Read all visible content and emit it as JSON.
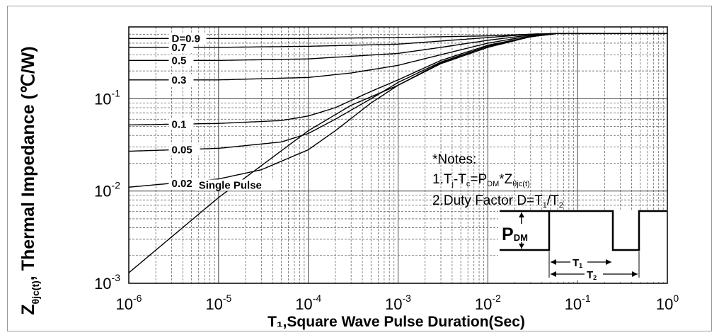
{
  "chart_data": {
    "type": "line",
    "xscale": "log",
    "yscale": "log",
    "xlim": [
      1e-06,
      1
    ],
    "ylim": [
      0.001,
      0.6
    ],
    "grid": true,
    "xlabel": "T₁,Square Wave Pulse Duration(Sec)",
    "ylabel": {
      "prefix": "Z",
      "subscript": "θjc(t)",
      "suffix": ", Thermal Impedance (℃/W)"
    },
    "x_ticks": [
      {
        "value": 1e-06,
        "base": "10",
        "exp": "-6"
      },
      {
        "value": 1e-05,
        "base": "10",
        "exp": "-5"
      },
      {
        "value": 0.0001,
        "base": "10",
        "exp": "-4"
      },
      {
        "value": 0.001,
        "base": "10",
        "exp": "-3"
      },
      {
        "value": 0.01,
        "base": "10",
        "exp": "-2"
      },
      {
        "value": 0.1,
        "base": "10",
        "exp": "-1"
      },
      {
        "value": 1,
        "base": "10",
        "exp": "0"
      }
    ],
    "y_ticks": [
      {
        "value": 0.001,
        "base": "10",
        "exp": "-3"
      },
      {
        "value": 0.01,
        "base": "10",
        "exp": "-2"
      },
      {
        "value": 0.1,
        "base": "10",
        "exp": "-1"
      }
    ],
    "series": [
      {
        "name": "D=0.9",
        "x": [
          1e-06,
          1e-05,
          0.0001,
          0.001,
          0.01,
          0.03,
          0.06,
          0.1,
          1
        ],
        "y": [
          0.45,
          0.45,
          0.45,
          0.46,
          0.48,
          0.5,
          0.51,
          0.51,
          0.51
        ]
      },
      {
        "name": "0.7",
        "x": [
          1e-06,
          1e-05,
          0.0001,
          0.001,
          0.01,
          0.03,
          0.06,
          0.1,
          1
        ],
        "y": [
          0.36,
          0.36,
          0.37,
          0.39,
          0.46,
          0.5,
          0.51,
          0.51,
          0.51
        ]
      },
      {
        "name": "0.5",
        "x": [
          1e-06,
          1e-05,
          0.0001,
          0.001,
          0.003,
          0.01,
          0.03,
          0.06,
          1
        ],
        "y": [
          0.26,
          0.26,
          0.27,
          0.31,
          0.36,
          0.43,
          0.49,
          0.51,
          0.51
        ]
      },
      {
        "name": "0.3",
        "x": [
          1e-06,
          1e-05,
          0.0001,
          0.0003,
          0.001,
          0.003,
          0.01,
          0.03,
          0.06,
          1
        ],
        "y": [
          0.16,
          0.16,
          0.17,
          0.19,
          0.23,
          0.3,
          0.4,
          0.48,
          0.51,
          0.51
        ]
      },
      {
        "name": "0.1",
        "x": [
          1e-06,
          1e-05,
          5e-05,
          0.0001,
          0.0002,
          0.0005,
          0.001,
          0.003,
          0.01,
          0.03,
          0.06,
          1
        ],
        "y": [
          0.052,
          0.054,
          0.058,
          0.065,
          0.08,
          0.12,
          0.16,
          0.26,
          0.38,
          0.47,
          0.51,
          0.51
        ]
      },
      {
        "name": "0.05",
        "x": [
          1e-06,
          1e-05,
          5e-05,
          0.0001,
          0.0002,
          0.0005,
          0.001,
          0.003,
          0.01,
          0.03,
          0.06,
          1
        ],
        "y": [
          0.027,
          0.029,
          0.034,
          0.042,
          0.06,
          0.1,
          0.15,
          0.25,
          0.37,
          0.47,
          0.51,
          0.51
        ]
      },
      {
        "name": "0.02",
        "x": [
          1e-06,
          1e-05,
          3e-05,
          0.0001,
          0.0002,
          0.0005,
          0.001,
          0.003,
          0.01,
          0.03,
          0.06,
          1
        ],
        "y": [
          0.011,
          0.0135,
          0.017,
          0.028,
          0.045,
          0.09,
          0.14,
          0.245,
          0.37,
          0.47,
          0.51,
          0.51
        ]
      },
      {
        "name": "Single Pulse",
        "x": [
          1e-06,
          1e-05,
          0.0001,
          0.0003,
          0.001,
          0.003,
          0.01,
          0.03,
          0.06,
          1
        ],
        "y": [
          0.0013,
          0.0085,
          0.045,
          0.085,
          0.14,
          0.24,
          0.36,
          0.47,
          0.51,
          0.51
        ]
      }
    ],
    "label_anchors": [
      {
        "text": "D=0.9",
        "x": 3e-06
      },
      {
        "text": "0.7",
        "x": 3e-06
      },
      {
        "text": "0.5",
        "x": 3e-06
      },
      {
        "text": "0.3",
        "x": 3e-06
      },
      {
        "text": "0.1",
        "x": 3e-06
      },
      {
        "text": "0.05",
        "x": 3e-06
      },
      {
        "text": "0.02",
        "x": 3e-06
      },
      {
        "text": "Single Pulse",
        "x": 6e-06
      }
    ],
    "notes": {
      "title": "*Notes:",
      "line1": {
        "a": "1.T",
        "a_sub": "j",
        "b": "-T",
        "b_sub": "c",
        "c": "=P",
        "c_sub": "DM",
        "d": "*Z",
        "d_sub": "θjc(t)"
      },
      "line2": {
        "a": "2.Duty Factor D=T",
        "a_sub": "1",
        "b": "/T",
        "b_sub": "2"
      }
    },
    "pulse_diagram": {
      "pdm_main": "P",
      "pdm_sub": "DM",
      "t1_main": "T",
      "t1_sub": "1",
      "t2_main": "T",
      "t2_sub": "2"
    }
  }
}
